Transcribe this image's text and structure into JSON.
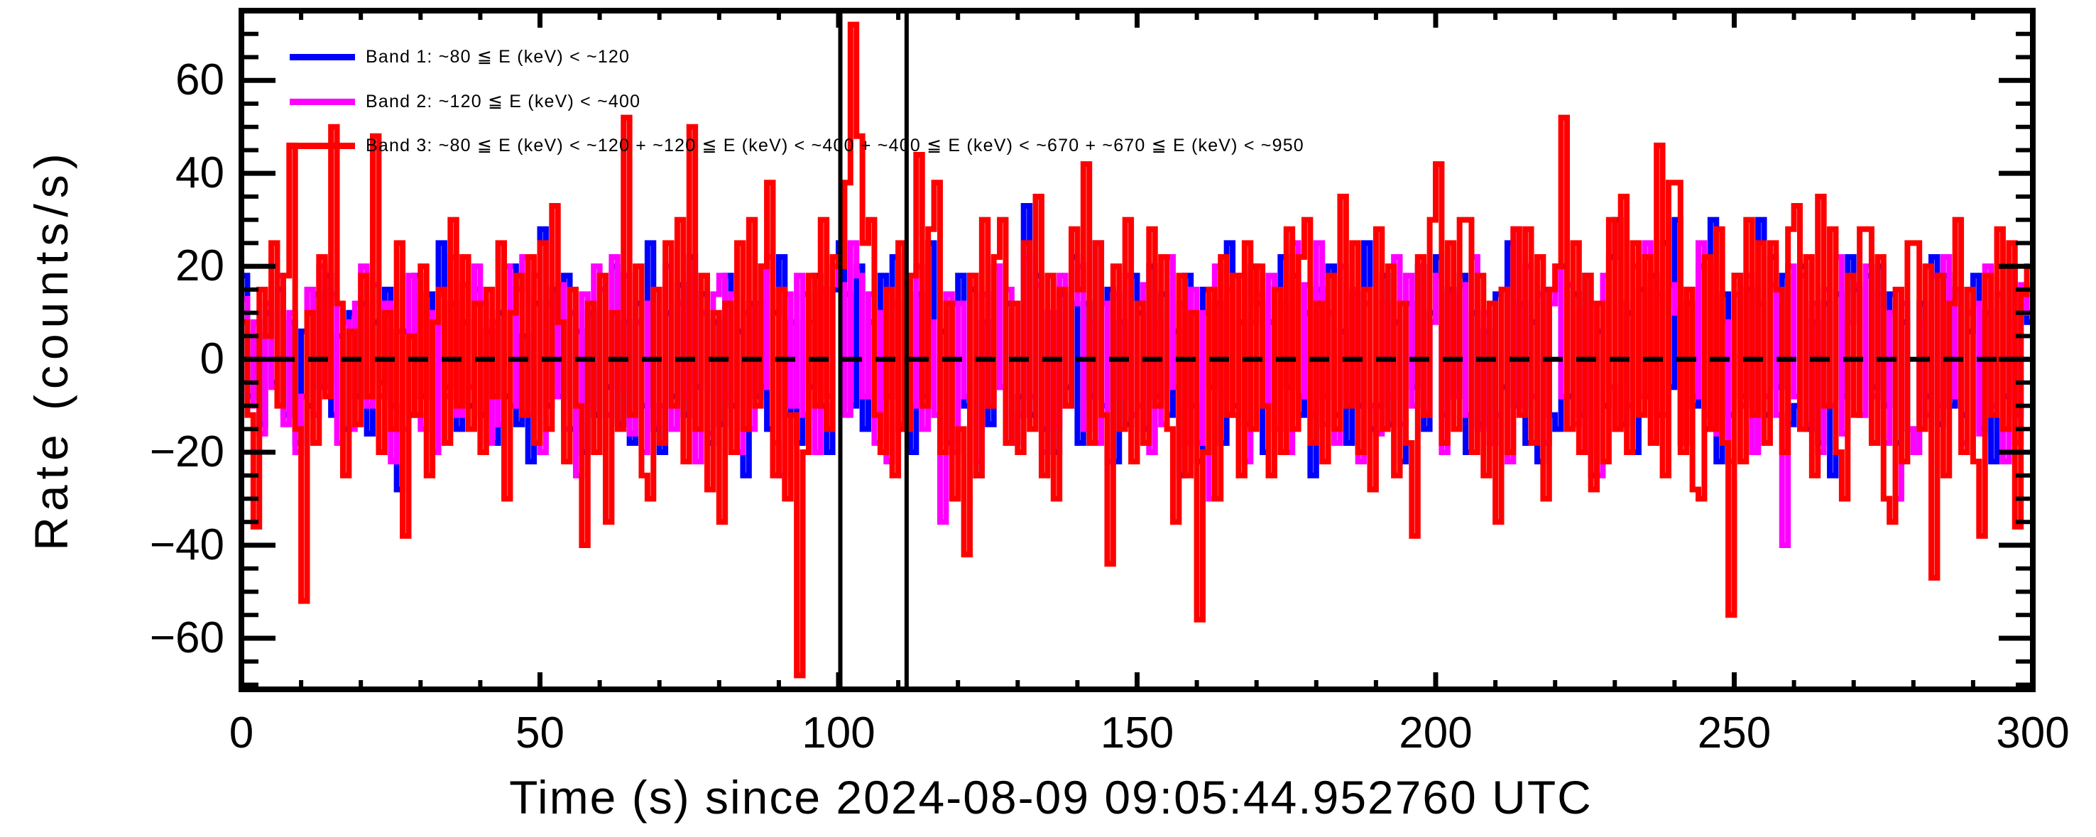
{
  "window": {
    "background": "#ffffff"
  },
  "chart_data": {
    "type": "line",
    "style": "step-histogram",
    "title": "",
    "xlabel": "Time (s) since 2024-08-09 09:05:44.952760 UTC",
    "ylabel": "Rate (counts/s)",
    "xlim": [
      0,
      300
    ],
    "ylim": [
      -71,
      75
    ],
    "bin_width_s": 1,
    "grid": false,
    "zero_line": {
      "value": 0,
      "style": "dashed",
      "color": "#000000"
    },
    "marker_lines": {
      "times": [
        100.3,
        111.4
      ],
      "color": "#000000"
    },
    "x_ticks": {
      "values": [
        0,
        50,
        100,
        150,
        200,
        250,
        300
      ],
      "labels": [
        "0",
        "50",
        "100",
        "150",
        "200",
        "250",
        "300"
      ],
      "minor_step": 10
    },
    "y_ticks": {
      "values": [
        -60,
        -40,
        -20,
        0,
        20,
        40,
        60
      ],
      "labels": [
        "−60",
        "−40",
        "−20",
        "0",
        "20",
        "40",
        "60"
      ],
      "minor_step": 5
    },
    "legend": [
      {
        "name": "band1",
        "color": "#0000ff",
        "label": "Band 1: ~80 ≦ E (keV) < ~120"
      },
      {
        "name": "band2",
        "color": "#ff00ff",
        "label": "Band 2: ~120 ≦ E (keV) < ~400"
      },
      {
        "name": "band3",
        "color": "#ff0000",
        "label": "Band 3: ~80 ≦ E (keV) < ~120 + ~120 ≦ E (keV) < ~400 + ~400 ≦ E (keV) < ~670 + ~670 ≦ E (keV) < ~950"
      }
    ],
    "series": [
      {
        "name": "Band 1",
        "color": "#0000ff",
        "values": [
          18,
          -8,
          5,
          -14,
          10,
          -5,
          15,
          -12,
          8,
          -18,
          6,
          -10,
          14,
          -6,
          18,
          -12,
          5,
          -15,
          10,
          -8,
          12,
          -16,
          8,
          -5,
          15,
          -10,
          -28,
          6,
          -12,
          18,
          -8,
          14,
          -20,
          25,
          -6,
          12,
          -15,
          8,
          -10,
          15,
          -12,
          6,
          -18,
          10,
          -8,
          20,
          -14,
          5,
          -22,
          12,
          28,
          -10,
          15,
          -8,
          18,
          -15,
          6,
          -20,
          10,
          -12,
          15,
          -6,
          20,
          -14,
          8,
          -18,
          12,
          -10,
          25,
          -15,
          -20,
          10,
          -8,
          16,
          -12,
          22,
          -6,
          14,
          -18,
          8,
          -14,
          18,
          -10,
          6,
          -25,
          12,
          -8,
          20,
          -15,
          10,
          22,
          -12,
          8,
          -18,
          14,
          -6,
          18,
          -10,
          -20,
          15,
          25,
          14,
          -10,
          20,
          -15,
          8,
          -12,
          18,
          -8,
          22,
          -15,
          10,
          -20,
          14,
          -8,
          25,
          -12,
          6,
          -18,
          12,
          18,
          -10,
          15,
          -25,
          8,
          -14,
          20,
          -6,
          12,
          -18,
          -8,
          33,
          -12,
          18,
          -15,
          10,
          -20,
          14,
          -6,
          22,
          -18,
          12,
          -8,
          25,
          -10,
          15,
          -22,
          8,
          -14,
          18,
          10,
          -15,
          20,
          -8,
          14,
          -12,
          6,
          -25,
          18,
          -10,
          -22,
          15,
          -6,
          12,
          -18,
          25,
          -10,
          8,
          -14,
          20,
          12,
          -20,
          8,
          -15,
          22,
          -6,
          18,
          -12,
          10,
          -25,
          15,
          -8,
          20,
          -12,
          6,
          -18,
          14,
          -10,
          25,
          -15,
          -10,
          18,
          -14,
          8,
          -22,
          12,
          -6,
          20,
          -15,
          10,
          22,
          -12,
          15,
          -8,
          18,
          -20,
          10,
          -14,
          6,
          -18,
          14,
          -6,
          25,
          -10,
          12,
          -18,
          8,
          -22,
          15,
          -12,
          -15,
          20,
          -8,
          14,
          -12,
          18,
          -25,
          6,
          -10,
          22,
          30,
          -14,
          10,
          -20,
          15,
          -8,
          18,
          -12,
          25,
          -6,
          30,
          -18,
          12,
          -10,
          20,
          -15,
          30,
          -22,
          14,
          -12,
          18,
          -8,
          15,
          -20,
          30,
          -12,
          22,
          -6,
          18,
          -14,
          -10,
          20,
          -15,
          8,
          -18,
          12,
          -25,
          14,
          -8,
          22,
          15,
          -12,
          18,
          -6,
          20,
          -10,
          14,
          -18,
          8,
          -15,
          -20,
          12,
          -8,
          22,
          -14,
          18,
          -10,
          15,
          -12,
          6,
          18,
          -15,
          10,
          -22,
          14,
          -8,
          20,
          -12,
          15,
          8
        ]
      },
      {
        "name": "Band 2",
        "color": "#ff00ff",
        "values": [
          13,
          -10,
          8,
          -16,
          12,
          -6,
          18,
          -14,
          10,
          -20,
          -8,
          15,
          -12,
          20,
          -6,
          14,
          -18,
          8,
          -15,
          12,
          20,
          -10,
          16,
          -8,
          12,
          -22,
          6,
          -15,
          18,
          -12,
          -15,
          10,
          -20,
          14,
          -8,
          22,
          -12,
          16,
          -6,
          20,
          12,
          -18,
          8,
          -14,
          20,
          -10,
          15,
          22,
          -12,
          18,
          -20,
          12,
          -8,
          16,
          -15,
          10,
          -25,
          14,
          -10,
          20,
          15,
          -12,
          22,
          -6,
          18,
          -16,
          8,
          -20,
          12,
          -14,
          -10,
          20,
          -15,
          12,
          -8,
          18,
          -22,
          10,
          -16,
          14,
          18,
          -8,
          14,
          -20,
          10,
          -15,
          12,
          -6,
          22,
          -18,
          -25,
          14,
          -10,
          18,
          -12,
          8,
          -20,
          15,
          -8,
          20,
          16,
          -12,
          25,
          18,
          -8,
          14,
          -18,
          10,
          -22,
          12,
          -14,
          18,
          -10,
          20,
          -15,
          8,
          -12,
          -35,
          14,
          -20,
          12,
          -8,
          18,
          -22,
          14,
          -10,
          20,
          -6,
          15,
          -18,
          -12,
          22,
          -8,
          16,
          -20,
          10,
          -14,
          18,
          -10,
          12,
          20,
          -15,
          8,
          -18,
          12,
          -22,
          14,
          -8,
          18,
          -12,
          -10,
          16,
          -20,
          8,
          -14,
          22,
          -6,
          12,
          -18,
          15,
          -18,
          10,
          -30,
          20,
          -8,
          15,
          -12,
          18,
          -22,
          8,
          14,
          -10,
          18,
          -15,
          12,
          -20,
          25,
          -8,
          16,
          -12,
          25,
          -14,
          10,
          -18,
          20,
          -8,
          15,
          -22,
          12,
          -10,
          -16,
          12,
          -8,
          22,
          -14,
          18,
          -10,
          20,
          -12,
          8,
          18,
          -20,
          14,
          -8,
          16,
          -12,
          22,
          -15,
          10,
          -18,
          -12,
          15,
          -22,
          28,
          -10,
          20,
          -8,
          14,
          -18,
          12,
          20,
          -8,
          16,
          -14,
          10,
          -20,
          12,
          -25,
          18,
          -6,
          -15,
          12,
          -10,
          20,
          -8,
          25,
          -18,
          14,
          -12,
          16,
          10,
          -18,
          15,
          -8,
          25,
          -12,
          20,
          -16,
          8,
          -22,
          14,
          -10,
          18,
          -20,
          12,
          -8,
          16,
          -12,
          -40,
          20,
          -8,
          18,
          -14,
          12,
          -20,
          15,
          -10,
          22,
          -16,
          8,
          16,
          -12,
          20,
          -8,
          14,
          -18,
          10,
          -30,
          12,
          -15,
          -20,
          8,
          -12,
          18,
          -10,
          22,
          -8,
          15,
          -18,
          10,
          12,
          -16,
          20,
          -10,
          14,
          -22,
          8,
          -18,
          16,
          10
        ]
      },
      {
        "name": "Band 3",
        "color": "#ff0000",
        "values": [
          8,
          -12,
          -36,
          15,
          5,
          25,
          -10,
          18,
          46,
          -15,
          -52,
          10,
          -18,
          22,
          -8,
          50,
          12,
          -25,
          6,
          -14,
          18,
          -8,
          48,
          -20,
          10,
          -15,
          25,
          -38,
          5,
          -12,
          20,
          -25,
          8,
          15,
          -18,
          30,
          -10,
          22,
          -15,
          12,
          -20,
          15,
          -8,
          25,
          -30,
          10,
          18,
          -12,
          22,
          -18,
          25,
          -15,
          33,
          8,
          -22,
          15,
          -10,
          -40,
          12,
          -20,
          18,
          -35,
          10,
          -15,
          52,
          -12,
          20,
          -25,
          -30,
          15,
          -18,
          25,
          -10,
          30,
          -22,
          50,
          -15,
          18,
          -28,
          10,
          -35,
          12,
          -20,
          25,
          -15,
          30,
          -10,
          20,
          38,
          -25,
          15,
          -30,
          -12,
          -68,
          -20,
          18,
          -10,
          30,
          -15,
          22,
          20,
          38,
          72,
          48,
          25,
          30,
          -12,
          -20,
          15,
          -25,
          25,
          -15,
          18,
          44,
          -10,
          28,
          38,
          -20,
          12,
          -30,
          -15,
          -42,
          18,
          -25,
          30,
          -10,
          22,
          30,
          -18,
          12,
          -20,
          25,
          -15,
          35,
          -25,
          18,
          -30,
          15,
          -10,
          28,
          15,
          42,
          -18,
          25,
          -12,
          -44,
          20,
          -15,
          30,
          -22,
          12,
          -18,
          28,
          -10,
          22,
          -15,
          -35,
          18,
          -25,
          10,
          -56,
          -20,
          15,
          -30,
          22,
          -12,
          18,
          -25,
          25,
          -15,
          20,
          -10,
          -25,
          15,
          -20,
          28,
          -15,
          22,
          30,
          -18,
          12,
          -22,
          18,
          -15,
          35,
          -10,
          25,
          -20,
          15,
          -28,
          28,
          -15,
          20,
          -25,
          12,
          -18,
          -38,
          22,
          -12,
          30,
          42,
          -18,
          25,
          -15,
          30,
          30,
          -20,
          18,
          -25,
          12,
          -35,
          15,
          -20,
          28,
          -12,
          28,
          -18,
          22,
          -30,
          15,
          20,
          52,
          -15,
          25,
          -20,
          18,
          -28,
          12,
          -22,
          30,
          -15,
          35,
          -20,
          25,
          -12,
          22,
          -18,
          46,
          -25,
          38,
          38,
          -20,
          15,
          -28,
          -30,
          22,
          -15,
          28,
          -18,
          -55,
          18,
          -22,
          30,
          -12,
          25,
          -18,
          25,
          15,
          -20,
          28,
          33,
          -15,
          22,
          -25,
          35,
          -10,
          28,
          -20,
          -30,
          18,
          -12,
          28,
          28,
          -18,
          22,
          -30,
          -35,
          15,
          -22,
          25,
          25,
          -15,
          20,
          -47,
          18,
          -25,
          12,
          30,
          -20,
          15,
          -22,
          -38,
          18,
          -12,
          28,
          -15,
          25,
          -36,
          14,
          20
        ]
      }
    ]
  }
}
